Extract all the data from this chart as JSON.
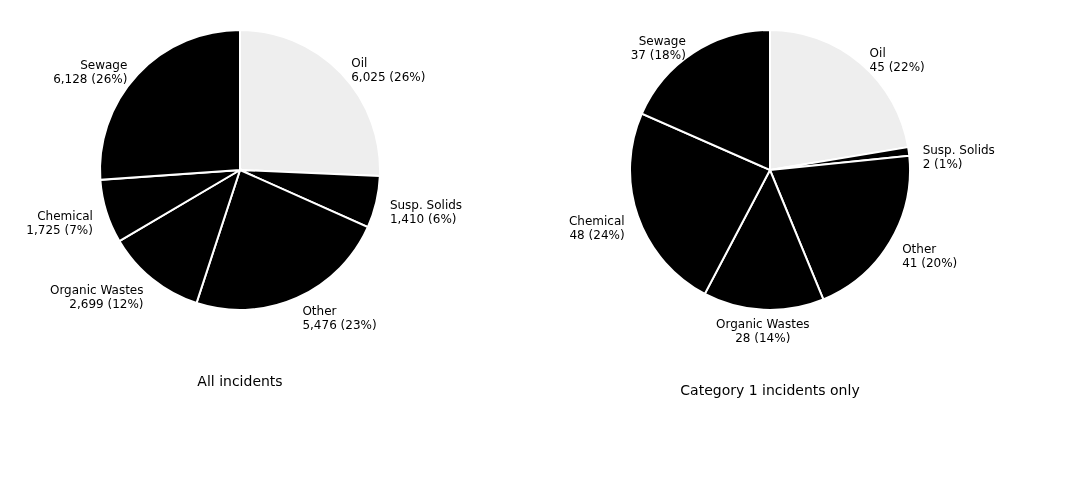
{
  "chart_data": [
    {
      "type": "pie",
      "title": "All incidents",
      "categories": [
        "Oil",
        "Susp. Solids",
        "Other",
        "Organic Wastes",
        "Chemical",
        "Sewage"
      ],
      "values": [
        6025,
        1410,
        5476,
        2699,
        1725,
        6128
      ],
      "colors": [
        "#eeeeee",
        "#000000",
        "#000000",
        "#000000",
        "#000000",
        "#000000"
      ],
      "value_labels": [
        "6,025 (26%)",
        "1,410 (6%)",
        "5,476 (23%)",
        "2,699 (12%)",
        "1,725 (7%)",
        "6,128 (26%)"
      ]
    },
    {
      "type": "pie",
      "title": "Category 1 incidents only",
      "categories": [
        "Oil",
        "Susp. Solids",
        "Other",
        "Organic Wastes",
        "Chemical",
        "Sewage"
      ],
      "values": [
        45,
        2,
        41,
        28,
        48,
        37
      ],
      "colors": [
        "#eeeeee",
        "#000000",
        "#000000",
        "#000000",
        "#000000",
        "#000000"
      ],
      "value_labels": [
        "45 (22%)",
        "2 (1%)",
        "41 (20%)",
        "28 (14%)",
        "48 (24%)",
        "37 (18%)"
      ]
    }
  ]
}
